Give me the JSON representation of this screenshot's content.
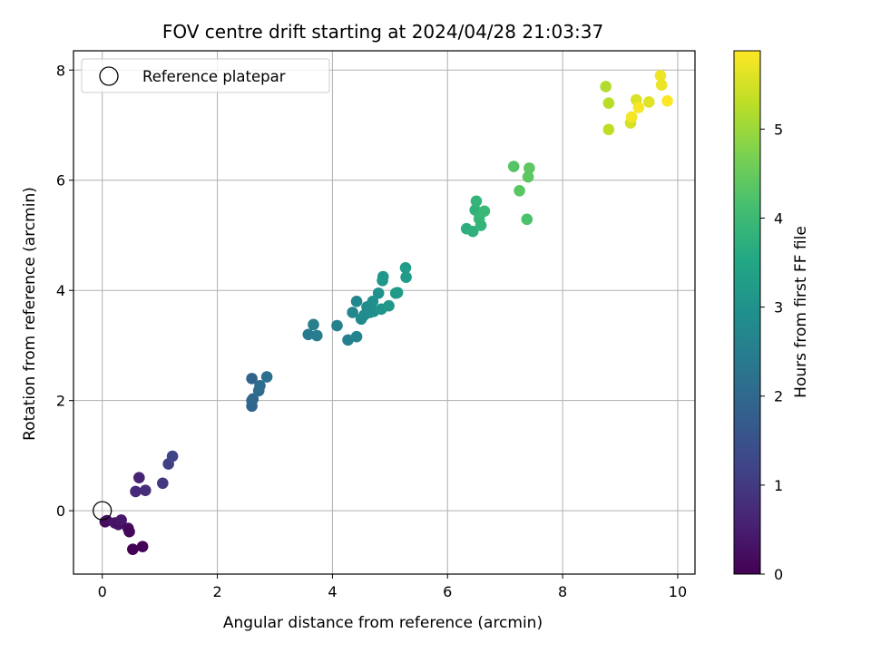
{
  "chart_data": {
    "type": "scatter",
    "title": "FOV centre drift starting at 2024/04/28 21:03:37",
    "xlabel": "Angular distance from reference (arcmin)",
    "ylabel": "Rotation from reference (arcmin)",
    "xlim": [
      -0.5,
      10.3
    ],
    "ylim": [
      -1.15,
      8.35
    ],
    "xticks": [
      0,
      2,
      4,
      6,
      8,
      10
    ],
    "yticks": [
      0,
      2,
      4,
      6,
      8
    ],
    "grid": true,
    "legend_position": "upper-left",
    "colorbar": {
      "label": "Hours from first FF file",
      "colormap": "viridis",
      "range": [
        0,
        5.88
      ],
      "ticks": [
        0,
        1,
        2,
        3,
        4,
        5
      ]
    },
    "reference": {
      "name": "Reference platepar",
      "x": 0,
      "y": 0,
      "marker": "open-circle"
    },
    "series": [
      {
        "points": [
          [
            0.05,
            -0.2,
            0.15
          ],
          [
            0.08,
            -0.18,
            0.25
          ],
          [
            0.22,
            -0.22,
            0.35
          ],
          [
            0.28,
            -0.25,
            0.3
          ],
          [
            0.33,
            -0.17,
            0.4
          ],
          [
            0.45,
            -0.32,
            0.2
          ],
          [
            0.47,
            -0.38,
            0.1
          ],
          [
            0.53,
            -0.7,
            0.02
          ],
          [
            0.7,
            -0.65,
            0.05
          ],
          [
            0.58,
            0.35,
            0.7
          ],
          [
            0.64,
            0.6,
            0.6
          ],
          [
            0.75,
            0.37,
            0.8
          ],
          [
            1.05,
            0.5,
            1.0
          ],
          [
            1.15,
            0.85,
            1.1
          ],
          [
            1.22,
            0.99,
            1.2
          ],
          [
            2.6,
            1.9,
            1.9
          ],
          [
            2.6,
            2.0,
            1.95
          ],
          [
            2.62,
            2.03,
            2.0
          ],
          [
            2.6,
            2.4,
            1.9
          ],
          [
            2.72,
            2.18,
            2.05
          ],
          [
            2.74,
            2.27,
            2.1
          ],
          [
            2.86,
            2.43,
            2.15
          ],
          [
            3.58,
            3.2,
            2.4
          ],
          [
            3.67,
            3.38,
            2.5
          ],
          [
            3.73,
            3.18,
            2.45
          ],
          [
            4.08,
            3.36,
            2.6
          ],
          [
            4.27,
            3.1,
            2.55
          ],
          [
            4.35,
            3.6,
            2.7
          ],
          [
            4.42,
            3.16,
            2.65
          ],
          [
            4.42,
            3.8,
            2.75
          ],
          [
            4.5,
            3.48,
            2.8
          ],
          [
            4.55,
            3.55,
            2.82
          ],
          [
            4.6,
            3.7,
            2.85
          ],
          [
            4.65,
            3.6,
            2.9
          ],
          [
            4.7,
            3.8,
            2.95
          ],
          [
            4.72,
            3.62,
            2.88
          ],
          [
            4.8,
            3.95,
            3.0
          ],
          [
            4.85,
            3.66,
            3.05
          ],
          [
            4.87,
            4.18,
            3.1
          ],
          [
            4.88,
            4.25,
            3.1
          ],
          [
            4.98,
            3.72,
            3.15
          ],
          [
            5.1,
            3.95,
            3.2
          ],
          [
            5.13,
            3.96,
            3.2
          ],
          [
            5.27,
            4.41,
            3.25
          ],
          [
            5.28,
            4.24,
            3.25
          ],
          [
            6.33,
            5.12,
            3.7
          ],
          [
            6.44,
            5.07,
            3.75
          ],
          [
            6.48,
            5.46,
            3.8
          ],
          [
            6.5,
            5.62,
            3.85
          ],
          [
            6.55,
            5.3,
            3.9
          ],
          [
            6.58,
            5.18,
            3.85
          ],
          [
            6.64,
            5.44,
            3.95
          ],
          [
            7.15,
            6.25,
            4.3
          ],
          [
            7.25,
            5.81,
            4.35
          ],
          [
            7.38,
            5.29,
            4.2
          ],
          [
            7.4,
            6.06,
            4.4
          ],
          [
            7.42,
            6.22,
            4.4
          ],
          [
            8.75,
            7.7,
            5.2
          ],
          [
            8.8,
            7.4,
            5.25
          ],
          [
            8.8,
            6.92,
            5.3
          ],
          [
            9.18,
            7.04,
            5.5
          ],
          [
            9.2,
            7.15,
            5.8
          ],
          [
            9.28,
            7.46,
            5.55
          ],
          [
            9.32,
            7.32,
            5.82
          ],
          [
            9.5,
            7.42,
            5.6
          ],
          [
            9.7,
            7.9,
            5.75
          ],
          [
            9.72,
            7.73,
            5.7
          ],
          [
            9.82,
            7.44,
            5.86
          ]
        ]
      }
    ]
  }
}
